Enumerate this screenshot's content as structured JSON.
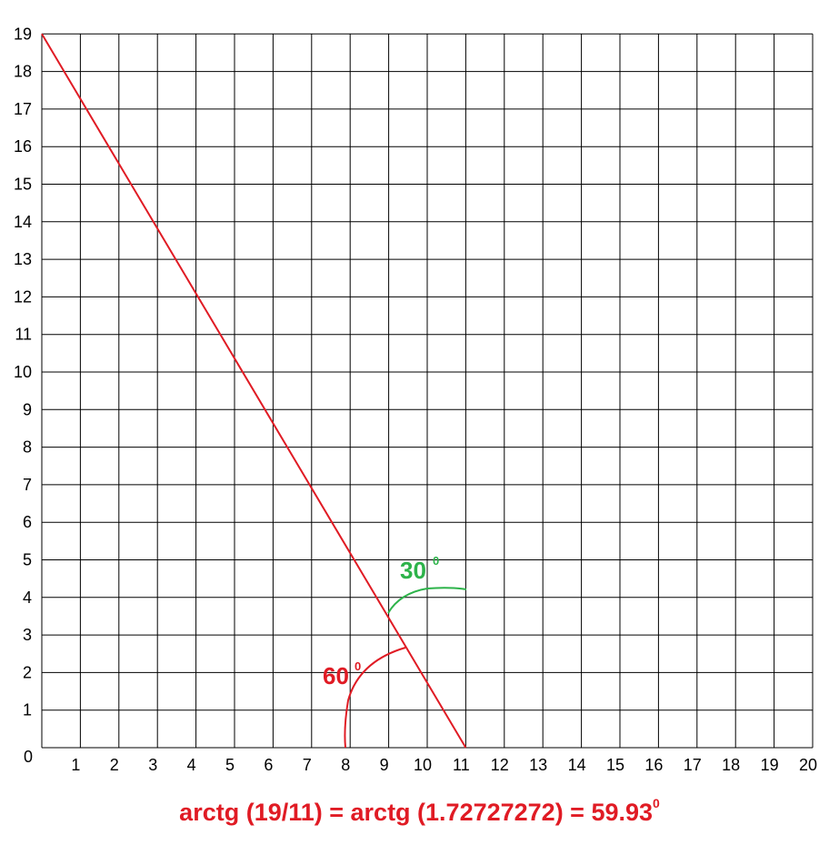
{
  "colors": {
    "grid": "#000000",
    "line": "#e01b24",
    "angle_small": "#2db34a",
    "angle_large": "#e01b24",
    "formula": "#e01b24"
  },
  "x_ticks": [
    "0",
    "1",
    "2",
    "3",
    "4",
    "5",
    "6",
    "7",
    "8",
    "9",
    "10",
    "11",
    "12",
    "13",
    "14",
    "15",
    "16",
    "17",
    "18",
    "19",
    "20"
  ],
  "y_ticks": [
    "1",
    "2",
    "3",
    "4",
    "5",
    "6",
    "7",
    "8",
    "9",
    "10",
    "11",
    "12",
    "13",
    "14",
    "15",
    "16",
    "17",
    "18",
    "19"
  ],
  "line": {
    "from": [
      0,
      19
    ],
    "to": [
      11,
      0
    ]
  },
  "angles": {
    "small": {
      "value": "30",
      "unit": "0"
    },
    "large": {
      "value": "60",
      "unit": "0"
    }
  },
  "formula": {
    "text": "arctg (19/11) = arctg (1.72727272) = 59.93",
    "unit": "0"
  }
}
